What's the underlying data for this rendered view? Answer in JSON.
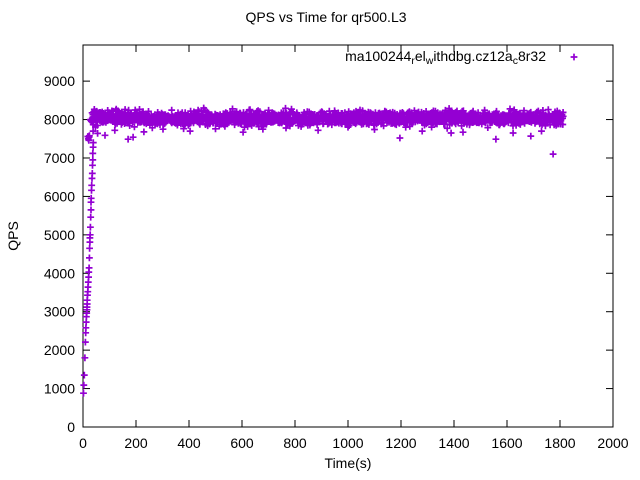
{
  "page": {
    "background": "#ffffff",
    "text_color": "#000000"
  },
  "chart_data": {
    "type": "scatter",
    "title": "QPS vs Time for qr500.L3",
    "xlabel": "Time(s)",
    "ylabel": "QPS",
    "xlim": [
      0,
      2000
    ],
    "ylim": [
      0,
      9940
    ],
    "xticks": [
      0,
      200,
      400,
      600,
      800,
      1000,
      1200,
      1400,
      1600,
      1800,
      2000
    ],
    "yticks": [
      0,
      1000,
      2000,
      3000,
      4000,
      5000,
      6000,
      7000,
      8000,
      9000
    ],
    "grid": false,
    "legend_position": "top-right-inside",
    "series": [
      {
        "name": "ma100244_rel_withdbg.cz12a_c8r32",
        "name_segments": [
          {
            "text": "ma100244"
          },
          {
            "text": "r",
            "sub": true
          },
          {
            "text": "el"
          },
          {
            "text": "w",
            "sub": true
          },
          {
            "text": "ithdbg.cz12a"
          },
          {
            "text": "c",
            "sub": true
          },
          {
            "text": "8r32"
          }
        ],
        "marker": "plus",
        "color": "#9400d3",
        "ramp_points": [
          [
            2,
            880
          ],
          [
            3,
            1090
          ],
          [
            5,
            1350
          ],
          [
            7,
            1800
          ],
          [
            9,
            2210
          ],
          [
            10,
            2450
          ],
          [
            11,
            2580
          ],
          [
            12,
            2730
          ],
          [
            13,
            2870
          ],
          [
            14,
            2960
          ],
          [
            15,
            3050
          ],
          [
            15,
            3120
          ],
          [
            16,
            3200
          ],
          [
            16,
            3300
          ],
          [
            17,
            3430
          ],
          [
            18,
            3520
          ],
          [
            19,
            3640
          ],
          [
            20,
            3770
          ],
          [
            21,
            3900
          ],
          [
            22,
            4030
          ],
          [
            23,
            4140
          ],
          [
            24,
            4400
          ],
          [
            25,
            4650
          ],
          [
            26,
            4810
          ],
          [
            26,
            4920
          ],
          [
            27,
            5000
          ],
          [
            28,
            5200
          ],
          [
            29,
            5460
          ],
          [
            30,
            5650
          ],
          [
            30,
            5850
          ],
          [
            31,
            5950
          ],
          [
            32,
            6160
          ],
          [
            33,
            6290
          ],
          [
            34,
            6470
          ],
          [
            35,
            6600
          ],
          [
            36,
            6810
          ],
          [
            37,
            6950
          ],
          [
            37,
            7120
          ],
          [
            38,
            7280
          ],
          [
            39,
            7400
          ],
          [
            18,
            7560
          ],
          [
            20,
            7500
          ],
          [
            22,
            7460
          ],
          [
            23,
            7540
          ],
          [
            24,
            7580
          ]
        ],
        "steady_band": {
          "x_start": 28,
          "x_end": 1812,
          "step": 1,
          "mean_qps": 8040,
          "stddev_qps": 95,
          "min_qps": 7600,
          "max_qps": 8380,
          "seed": 7
        },
        "low_outliers": [
          [
            38,
            7700
          ],
          [
            55,
            7640
          ],
          [
            83,
            7590
          ],
          [
            120,
            7720
          ],
          [
            170,
            7490
          ],
          [
            189,
            7540
          ],
          [
            230,
            7680
          ],
          [
            302,
            7750
          ],
          [
            404,
            7700
          ],
          [
            500,
            7760
          ],
          [
            604,
            7670
          ],
          [
            679,
            7750
          ],
          [
            766,
            7780
          ],
          [
            887,
            7720
          ],
          [
            1000,
            7800
          ],
          [
            1100,
            7740
          ],
          [
            1196,
            7520
          ],
          [
            1280,
            7700
          ],
          [
            1389,
            7650
          ],
          [
            1434,
            7670
          ],
          [
            1558,
            7490
          ],
          [
            1623,
            7650
          ],
          [
            1690,
            7570
          ],
          [
            1730,
            7700
          ],
          [
            1774,
            7100
          ]
        ]
      }
    ]
  }
}
